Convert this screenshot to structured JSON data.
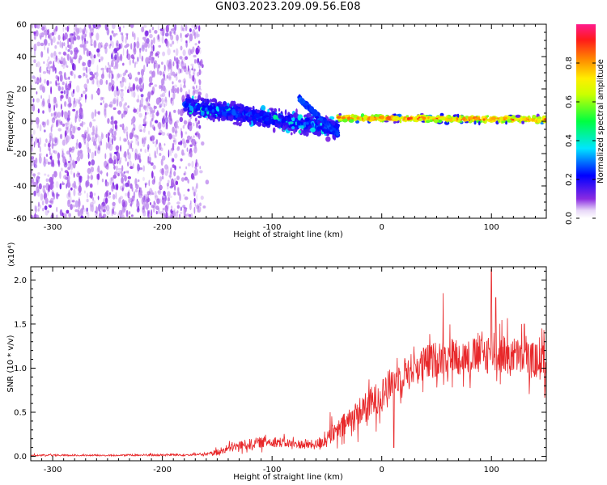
{
  "title": "GN03.2023.209.09.56.E08",
  "chart_data": [
    {
      "type": "heatmap",
      "xlabel": "Height of straight line (km)",
      "ylabel": "Frequency (Hz)",
      "xlim": [
        -320,
        150
      ],
      "ylim": [
        -60,
        60
      ],
      "x_ticks": [
        "-300",
        "-200",
        "-100",
        "0",
        "100"
      ],
      "x_tick_values": [
        -300,
        -200,
        -100,
        0,
        100
      ],
      "y_ticks": [
        "-60",
        "-40",
        "-20",
        "0",
        "20",
        "40",
        "60"
      ],
      "y_tick_values": [
        -60,
        -40,
        -20,
        0,
        20,
        40,
        60
      ],
      "colorbar": {
        "label": "Normalized spectral amplitude",
        "range": [
          0,
          1
        ],
        "ticks": [
          "0.0",
          "0.2",
          "0.4",
          "0.6",
          "0.8"
        ],
        "tick_values": [
          0,
          0.2,
          0.4,
          0.6,
          0.8
        ],
        "colormap": "rainbow (white-purple-blue-cyan-green-yellow-orange-red-magenta)"
      },
      "regions": [
        {
          "x": [
            -320,
            -165
          ],
          "freq": [
            -60,
            60
          ],
          "amplitude": [
            0.0,
            0.1
          ],
          "description_key": "broadband noise"
        },
        {
          "x": [
            -180,
            -40
          ],
          "freq_center": [
            10,
            -5
          ],
          "freq_halfwidth": 8,
          "amplitude": [
            0.1,
            0.3
          ]
        },
        {
          "x": [
            -75,
            -40
          ],
          "freq_center": [
            14,
            -8
          ],
          "freq_halfwidth": 2,
          "amplitude": [
            0.2,
            0.3
          ]
        },
        {
          "x": [
            -40,
            150
          ],
          "freq_center": [
            2,
            1
          ],
          "freq_halfwidth": 3,
          "amplitude": [
            0.4,
            0.95
          ]
        }
      ]
    },
    {
      "type": "line",
      "xlabel": "Height of straight line (km)",
      "ylabel": "SNR (10 * v/v)",
      "y_multiplier": "(x10⁴)",
      "xlim": [
        -320,
        150
      ],
      "ylim": [
        -0.05,
        2.15
      ],
      "x_ticks": [
        "-300",
        "-200",
        "-100",
        "0",
        "100"
      ],
      "x_tick_values": [
        -300,
        -200,
        -100,
        0,
        100
      ],
      "y_ticks": [
        "0.0",
        "0.5",
        "1.0",
        "1.5",
        "2.0"
      ],
      "y_tick_values": [
        0,
        0.5,
        1.0,
        1.5,
        2.0
      ],
      "color": "#e8282a",
      "series": [
        {
          "envelope_x": [
            -320,
            -250,
            -160,
            -150,
            -130,
            -110,
            -100,
            -80,
            -60,
            -50,
            -40,
            -30,
            -20,
            -10,
            0,
            10,
            20,
            40,
            60,
            80,
            100,
            120,
            150
          ],
          "envelope_mean": [
            0.01,
            0.01,
            0.02,
            0.05,
            0.12,
            0.16,
            0.17,
            0.14,
            0.13,
            0.2,
            0.28,
            0.4,
            0.5,
            0.6,
            0.7,
            0.85,
            0.95,
            1.05,
            1.15,
            1.12,
            1.18,
            1.15,
            1.05
          ],
          "envelope_noise": [
            0.015,
            0.015,
            0.02,
            0.05,
            0.08,
            0.09,
            0.09,
            0.07,
            0.08,
            0.15,
            0.18,
            0.22,
            0.25,
            0.25,
            0.28,
            0.25,
            0.25,
            0.3,
            0.3,
            0.3,
            0.35,
            0.3,
            0.3
          ],
          "peaks": [
            [
              -47,
              0.5
            ],
            [
              11,
              0.1
            ],
            [
              56,
              1.85
            ],
            [
              100,
              2.12
            ],
            [
              104,
              1.8
            ],
            [
              130,
              1.5
            ],
            [
              146,
              1.45
            ]
          ]
        }
      ]
    }
  ]
}
